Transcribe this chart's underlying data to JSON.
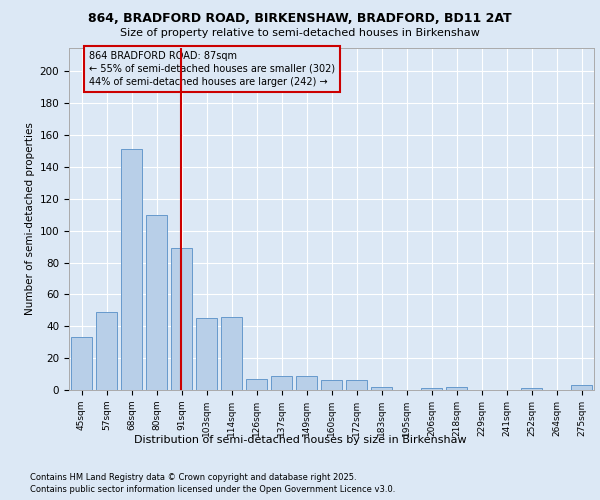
{
  "title1": "864, BRADFORD ROAD, BIRKENSHAW, BRADFORD, BD11 2AT",
  "title2": "Size of property relative to semi-detached houses in Birkenshaw",
  "xlabel": "Distribution of semi-detached houses by size in Birkenshaw",
  "ylabel": "Number of semi-detached properties",
  "categories": [
    "45sqm",
    "57sqm",
    "68sqm",
    "80sqm",
    "91sqm",
    "103sqm",
    "114sqm",
    "126sqm",
    "137sqm",
    "149sqm",
    "160sqm",
    "172sqm",
    "183sqm",
    "195sqm",
    "206sqm",
    "218sqm",
    "229sqm",
    "241sqm",
    "252sqm",
    "264sqm",
    "275sqm"
  ],
  "values": [
    33,
    49,
    151,
    110,
    89,
    45,
    46,
    7,
    9,
    9,
    6,
    6,
    2,
    0,
    1,
    2,
    0,
    0,
    1,
    0,
    3
  ],
  "bar_color": "#b8cfe8",
  "bar_edge_color": "#6699cc",
  "vline_x": 3.97,
  "vline_color": "#cc0000",
  "annotation_title": "864 BRADFORD ROAD: 87sqm",
  "annotation_line1": "← 55% of semi-detached houses are smaller (302)",
  "annotation_line2": "44% of semi-detached houses are larger (242) →",
  "annotation_box_color": "#cc0000",
  "ylim": [
    0,
    215
  ],
  "yticks": [
    0,
    20,
    40,
    60,
    80,
    100,
    120,
    140,
    160,
    180,
    200
  ],
  "footnote1": "Contains HM Land Registry data © Crown copyright and database right 2025.",
  "footnote2": "Contains public sector information licensed under the Open Government Licence v3.0.",
  "background_color": "#dce8f5",
  "plot_bg_color": "#dce8f5"
}
